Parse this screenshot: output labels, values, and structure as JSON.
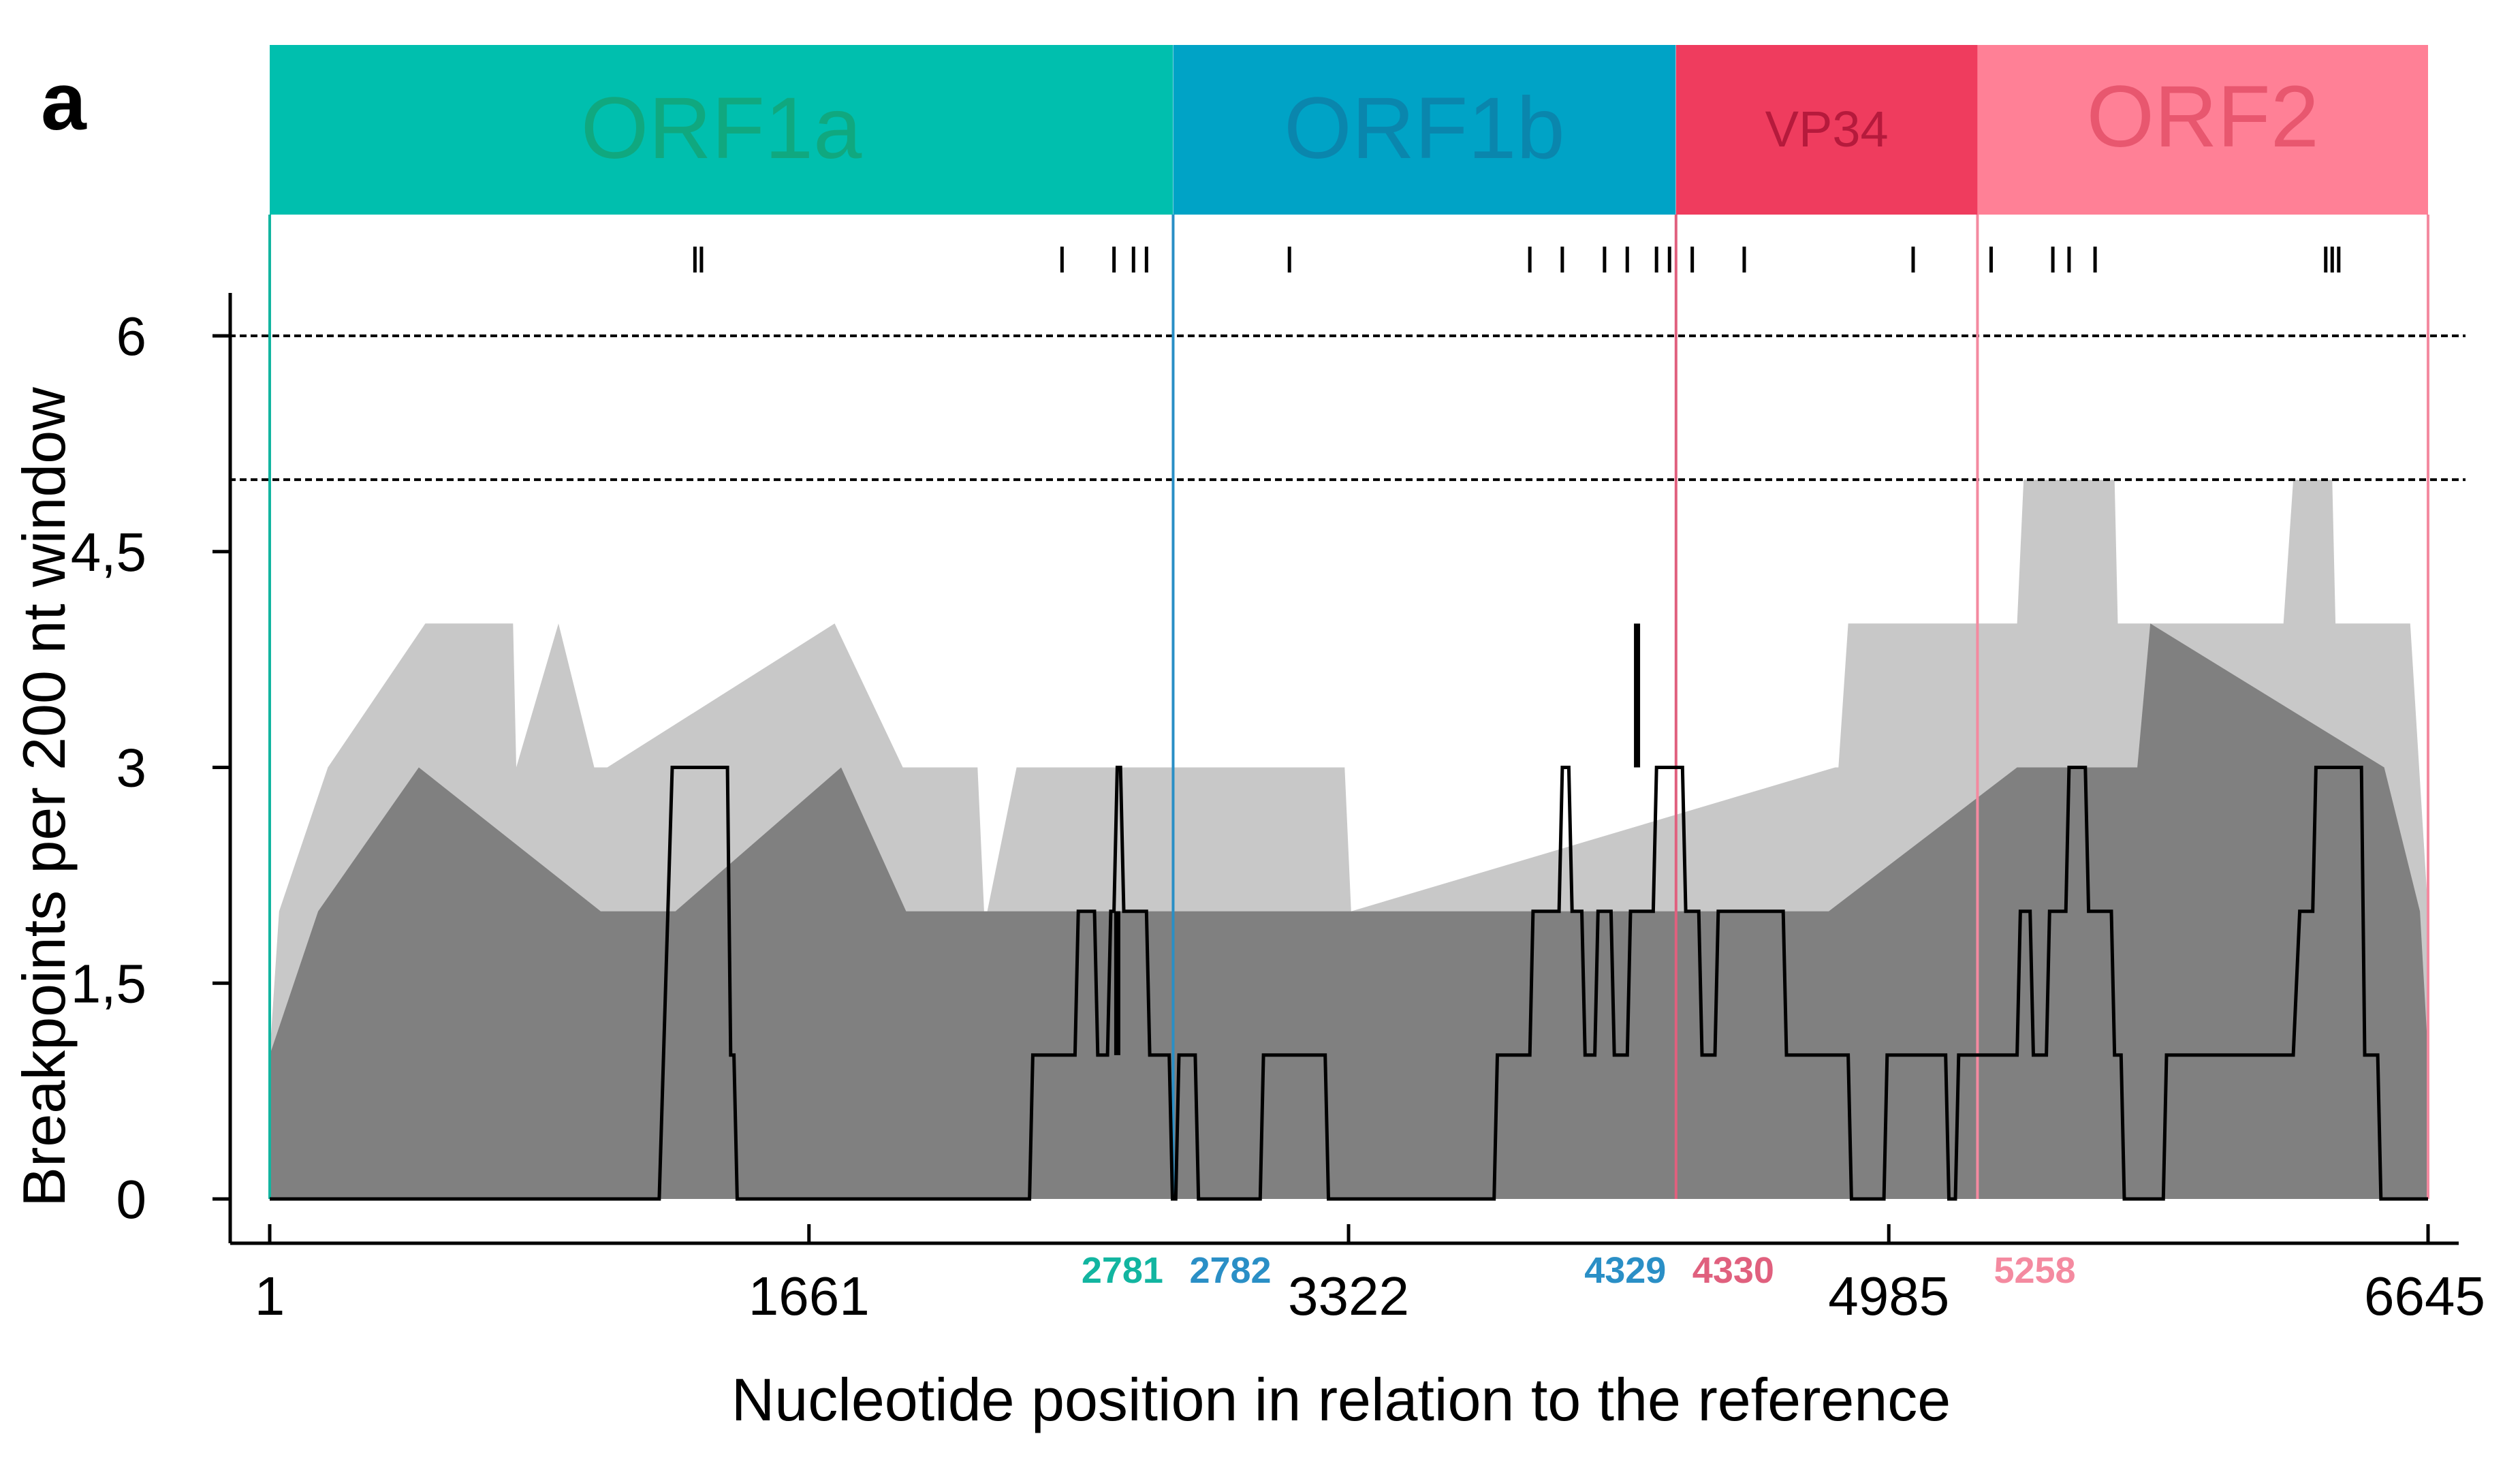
{
  "panel_label": "a",
  "colors": {
    "upper_band": "#c8c8c8",
    "lower_band": "#808080",
    "observed_line": "#000000",
    "threshold_line": "#000000"
  },
  "genes": [
    {
      "label": "ORF1a",
      "start": 1,
      "end": 2781,
      "color": "#00bfae",
      "text_color": "#10a87f",
      "start_label": "",
      "end_label": "2781",
      "boundary_color": "#12b5a0"
    },
    {
      "label": "ORF1b",
      "start": 2782,
      "end": 4329,
      "color": "#00a3c6",
      "text_color": "#0a86ad",
      "start_label": "2782",
      "end_label": "4329",
      "boundary_color": "#2a8fc6"
    },
    {
      "label": "VP34",
      "start": 4330,
      "end": 5258,
      "color": "#ef3c5e",
      "text_color": "#b51a3c",
      "start_label": "4330",
      "end_label": "",
      "boundary_color": "#e0607e"
    },
    {
      "label": "ORF2",
      "start": 5258,
      "end": 6645,
      "color": "#ff8096",
      "text_color": "#e8576f",
      "start_label": "5258",
      "end_label": "",
      "boundary_color": "#f48aa0"
    }
  ],
  "chart_data": {
    "type": "area",
    "xlabel": "Nucleotide position in relation to the reference",
    "ylabel": "Breakpoints per 200 nt window",
    "xlim": [
      1,
      6645
    ],
    "ylim": [
      0,
      6
    ],
    "x_ticks": [
      1,
      1661,
      3322,
      4985,
      6645
    ],
    "x_tick_labels": [
      "1",
      "1661",
      "3322",
      "4985",
      "6645"
    ],
    "y_ticks": [
      0,
      1.5,
      3,
      4.5,
      6
    ],
    "y_tick_labels": [
      "0",
      "1,5",
      "3",
      "4,5",
      "6"
    ],
    "thresholds": [
      6,
      5
    ],
    "breakpoint_positions": [
      1310,
      1330,
      2440,
      2600,
      2660,
      2700,
      3140,
      3880,
      3980,
      4110,
      4180,
      4270,
      4310,
      4380,
      4540,
      5060,
      5300,
      5490,
      5540,
      5620,
      6330,
      6350,
      6370
    ],
    "series": [
      {
        "name": "",
        "kind": "band",
        "color": "#c8c8c8",
        "x": [
          1,
          30,
          180,
          480,
          495,
          530,
          750,
          760,
          890,
          1000,
          1040,
          1740,
          1950,
          2180,
          2200,
          2210,
          2300,
          2310,
          3310,
          3330,
          4820,
          4830,
          4860,
          4900,
          5380,
          5400,
          5680,
          5690,
          6200,
          6230,
          6350,
          6360,
          6590,
          6645
        ],
        "upper": [
          1,
          2,
          3,
          4,
          4,
          4,
          4,
          3,
          4,
          3,
          3,
          4,
          3,
          3,
          2,
          2,
          3,
          3,
          3,
          2,
          3,
          3,
          4,
          4,
          4,
          5,
          5,
          4,
          4,
          5,
          5,
          4,
          4,
          2
        ],
        "lower": [
          0,
          0,
          0,
          0,
          0,
          0,
          0,
          0,
          0,
          0,
          0,
          0,
          0,
          0,
          0,
          0,
          0,
          0,
          0,
          0,
          0,
          0,
          0,
          0,
          0,
          0,
          0,
          0,
          0,
          0,
          0,
          0,
          0,
          0
        ]
      },
      {
        "name": "",
        "kind": "band",
        "color": "#808080",
        "x": [
          1,
          150,
          460,
          1020,
          1250,
          1760,
          1960,
          4800,
          5380,
          5750,
          5790,
          6510,
          6620,
          6645
        ],
        "upper": [
          1,
          2,
          3,
          2,
          2,
          3,
          2,
          2,
          3,
          3,
          4,
          3,
          2,
          1
        ],
        "lower": [
          0,
          0,
          0,
          0,
          0,
          0,
          0,
          0,
          0,
          0,
          0,
          0,
          0,
          0
        ]
      },
      {
        "name": "",
        "kind": "line",
        "color": "#000000",
        "x": [
          1,
          1200,
          1240,
          1410,
          1420,
          1430,
          1440,
          2340,
          2350,
          2480,
          2490,
          2540,
          2550,
          2580,
          2590,
          2600,
          2610,
          2620,
          2630,
          2700,
          2710,
          2770,
          2780,
          2790,
          2800,
          2850,
          2860,
          3050,
          3060,
          3250,
          3260,
          3770,
          3780,
          3880,
          3890,
          3970,
          3980,
          4000,
          4010,
          4040,
          4050,
          4080,
          4090,
          4130,
          4140,
          4180,
          4190,
          4260,
          4270,
          4350,
          4360,
          4400,
          4410,
          4450,
          4460,
          4660,
          4670,
          4860,
          4870,
          4970,
          4980,
          5160,
          5170,
          5190,
          5200,
          5380,
          5390,
          5420,
          5430,
          5470,
          5480,
          5530,
          5540,
          5590,
          5600,
          5670,
          5680,
          5700,
          5710,
          5830,
          5840,
          6230,
          6250,
          6290,
          6300,
          6440,
          6450,
          6490,
          6500,
          6645
        ],
        "y": [
          0,
          0,
          3,
          3,
          1,
          1,
          0,
          0,
          1,
          1,
          2,
          2,
          1,
          1,
          2,
          2,
          3,
          3,
          2,
          2,
          1,
          1,
          0,
          0,
          1,
          1,
          0,
          0,
          1,
          1,
          0,
          0,
          1,
          1,
          2,
          2,
          3,
          3,
          2,
          2,
          1,
          1,
          2,
          2,
          1,
          1,
          2,
          2,
          3,
          3,
          2,
          2,
          1,
          1,
          2,
          2,
          1,
          1,
          0,
          0,
          1,
          1,
          0,
          0,
          1,
          1,
          2,
          2,
          1,
          1,
          2,
          2,
          3,
          3,
          2,
          2,
          1,
          1,
          0,
          0,
          1,
          1,
          2,
          2,
          3,
          3,
          1,
          1,
          0,
          0
        ]
      },
      {
        "name": "",
        "kind": "spike",
        "color": "#000000",
        "x": [
          2610,
          4210
        ],
        "y": [
          1,
          4
        ]
      }
    ]
  }
}
